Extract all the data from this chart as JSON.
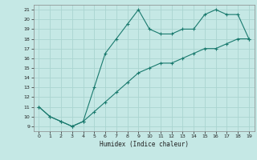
{
  "xlabel": "Humidex (Indice chaleur)",
  "background_color": "#c5e8e5",
  "grid_color": "#aad4d0",
  "line_color": "#1a7a6e",
  "xlim": [
    -0.5,
    19.5
  ],
  "ylim": [
    8.5,
    21.5
  ],
  "yticks": [
    9,
    10,
    11,
    12,
    13,
    14,
    15,
    16,
    17,
    18,
    19,
    20,
    21
  ],
  "xticks": [
    0,
    1,
    2,
    3,
    4,
    5,
    6,
    7,
    8,
    9,
    10,
    11,
    12,
    13,
    14,
    15,
    16,
    17,
    18,
    19
  ],
  "line1_x": [
    0,
    1,
    2,
    3,
    4,
    5,
    6,
    7,
    8,
    9,
    10,
    11,
    12,
    13,
    14,
    15,
    16,
    17,
    18,
    19
  ],
  "line1_y": [
    11,
    10,
    9.5,
    9,
    9.5,
    13,
    16.5,
    18,
    19.5,
    21,
    19,
    18.5,
    18.5,
    19,
    19,
    20.5,
    21,
    20.5,
    20.5,
    18
  ],
  "line2_x": [
    0,
    1,
    2,
    3,
    4,
    5,
    6,
    7,
    8,
    9,
    10,
    11,
    12,
    13,
    14,
    15,
    16,
    17,
    18,
    19
  ],
  "line2_y": [
    11,
    10,
    9.5,
    9,
    9.5,
    10.5,
    11.5,
    12.5,
    13.5,
    14.5,
    15.0,
    15.5,
    15.5,
    16.0,
    16.5,
    17.0,
    17.0,
    17.5,
    18.0,
    18.0
  ]
}
